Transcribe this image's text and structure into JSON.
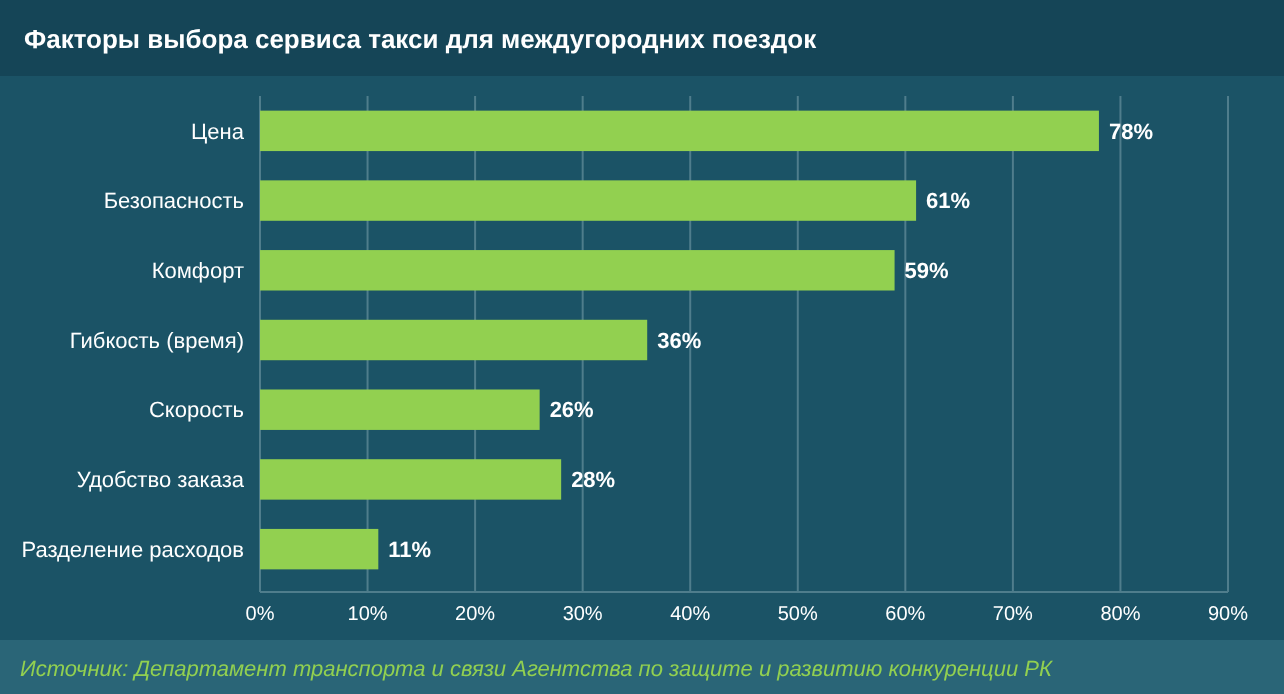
{
  "chart_data": {
    "type": "bar",
    "orientation": "horizontal",
    "title": "Факторы выбора сервиса такси для междугородних поездок",
    "categories": [
      "Цена",
      "Безопасность",
      "Комфорт",
      "Гибкость (время)",
      "Скорость",
      "Удобство заказа",
      "Разделение расходов"
    ],
    "values": [
      78,
      61,
      59,
      36,
      26,
      28,
      11
    ],
    "value_labels": [
      "78%",
      "61%",
      "59%",
      "36%",
      "26%",
      "28%",
      "11%"
    ],
    "color": "#92d050",
    "xlim": [
      0,
      90
    ],
    "xticks": [
      {
        "value": 0,
        "label": "0%"
      },
      {
        "value": 10,
        "label": "10%"
      },
      {
        "value": 20,
        "label": "20%"
      },
      {
        "value": 30,
        "label": "30%"
      },
      {
        "value": 40,
        "label": "40%"
      },
      {
        "value": 50,
        "label": "50%"
      },
      {
        "value": 60,
        "label": "60%"
      },
      {
        "value": 70,
        "label": "70%"
      },
      {
        "value": 80,
        "label": "80%"
      },
      {
        "value": 90,
        "label": "90%"
      }
    ],
    "grid": "x",
    "annotations": [
      "Источник: Департамент транспорта и связи Агентства по защите и развитию конкуренции РК"
    ]
  }
}
